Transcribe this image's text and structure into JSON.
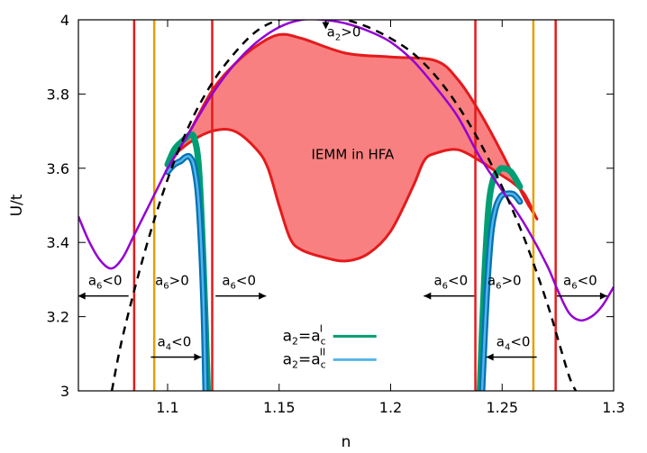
{
  "chart_data": {
    "type": "line",
    "xlabel": "n",
    "ylabel": "U/t",
    "xlim": [
      1.06,
      1.3
    ],
    "ylim": [
      3.0,
      4.0
    ],
    "xticks": [
      "1.1",
      "1.15",
      "1.2",
      "1.25",
      "1.3"
    ],
    "xtick_values": [
      1.1,
      1.15,
      1.2,
      1.25,
      1.3
    ],
    "yticks": [
      "3",
      "3.2",
      "3.4",
      "3.6",
      "3.8",
      "4"
    ],
    "ytick_values": [
      3.0,
      3.2,
      3.4,
      3.6,
      3.8,
      4.0
    ],
    "grid": false,
    "legend_position": "bottom-center",
    "region_label": "IEMM in HFA",
    "colors": {
      "red": "#e41a1c",
      "region_fill": "#f88080",
      "purple": "#9400d3",
      "orange": "#e69f00",
      "green": "#009e73",
      "light_blue": "#56b4e9",
      "dark_blue": "#0072b2",
      "black": "#000000"
    },
    "vertical_lines": [
      {
        "x": 1.085,
        "color": "red"
      },
      {
        "x": 1.094,
        "color": "orange"
      },
      {
        "x": 1.12,
        "color": "red"
      },
      {
        "x": 1.238,
        "color": "red"
      },
      {
        "x": 1.264,
        "color": "orange"
      },
      {
        "x": 1.274,
        "color": "red"
      }
    ],
    "legend": [
      {
        "lhs": "a",
        "lhs_sub": "2",
        "rhs": "a",
        "rhs_sub": "c",
        "rhs_sup": "I",
        "color": "green"
      },
      {
        "lhs": "a",
        "lhs_sub": "2",
        "rhs": "a",
        "rhs_sub": "c",
        "rhs_sup": "II",
        "color": "light_blue"
      }
    ],
    "annotations": [
      {
        "base": "a",
        "sub": "2",
        "rel": ">0",
        "x": 1.179,
        "y": 3.955,
        "arrow": "down"
      },
      {
        "base": "a",
        "sub": "6",
        "rel": "<0",
        "x": 1.072,
        "y": 3.285,
        "arrow": "left"
      },
      {
        "base": "a",
        "sub": "6",
        "rel": ">0",
        "x": 1.102,
        "y": 3.285,
        "arrow": "none"
      },
      {
        "base": "a",
        "sub": "6",
        "rel": "<0",
        "x": 1.132,
        "y": 3.285,
        "arrow": "right"
      },
      {
        "base": "a",
        "sub": "4",
        "rel": "<0",
        "x": 1.103,
        "y": 3.12,
        "arrow": "right"
      },
      {
        "base": "a",
        "sub": "6",
        "rel": "<0",
        "x": 1.227,
        "y": 3.285,
        "arrow": "left"
      },
      {
        "base": "a",
        "sub": "6",
        "rel": ">0",
        "x": 1.251,
        "y": 3.285,
        "arrow": "none"
      },
      {
        "base": "a",
        "sub": "6",
        "rel": "<0",
        "x": 1.285,
        "y": 3.285,
        "arrow": "right"
      },
      {
        "base": "a",
        "sub": "4",
        "rel": "<0",
        "x": 1.255,
        "y": 3.12,
        "arrow": "left"
      }
    ],
    "series": [
      {
        "style": "purple-solid",
        "x": [
          1.06,
          1.065,
          1.07,
          1.075,
          1.08,
          1.085,
          1.09,
          1.095,
          1.1,
          1.105,
          1.11,
          1.12,
          1.13,
          1.14,
          1.15,
          1.16,
          1.17,
          1.18,
          1.19,
          1.2,
          1.21,
          1.22,
          1.23,
          1.24,
          1.25,
          1.26,
          1.27,
          1.275,
          1.28,
          1.285,
          1.29,
          1.295,
          1.3
        ],
        "y": [
          3.47,
          3.4,
          3.35,
          3.33,
          3.36,
          3.42,
          3.48,
          3.54,
          3.6,
          3.65,
          3.7,
          3.8,
          3.88,
          3.94,
          3.98,
          4.0,
          4.0,
          3.99,
          3.97,
          3.94,
          3.89,
          3.82,
          3.74,
          3.63,
          3.54,
          3.45,
          3.34,
          3.27,
          3.21,
          3.19,
          3.2,
          3.23,
          3.28
        ]
      },
      {
        "style": "black-dashed",
        "x": [
          1.075,
          1.08,
          1.09,
          1.1,
          1.11,
          1.12,
          1.13,
          1.14,
          1.15,
          1.16,
          1.17,
          1.18,
          1.19,
          1.2,
          1.21,
          1.22,
          1.23,
          1.24,
          1.25,
          1.26,
          1.27,
          1.275,
          1.28,
          1.283
        ],
        "y": [
          3.0,
          3.15,
          3.38,
          3.57,
          3.72,
          3.83,
          3.91,
          3.97,
          4.0,
          4.01,
          4.01,
          4.0,
          3.98,
          3.95,
          3.91,
          3.85,
          3.77,
          3.67,
          3.55,
          3.41,
          3.24,
          3.14,
          3.04,
          3.0
        ]
      },
      {
        "style": "green-fan-left",
        "x": [
          1.1,
          1.103,
          1.106,
          1.108,
          1.11,
          1.112,
          1.114,
          1.116,
          1.118
        ],
        "y": [
          3.61,
          3.65,
          3.67,
          3.68,
          3.69,
          3.68,
          3.6,
          3.35,
          3.0
        ]
      },
      {
        "style": "blue-fan-left",
        "x": [
          1.1,
          1.103,
          1.106,
          1.108,
          1.11,
          1.112,
          1.114,
          1.116,
          1.117
        ],
        "y": [
          3.59,
          3.61,
          3.62,
          3.63,
          3.63,
          3.6,
          3.5,
          3.25,
          3.0
        ]
      },
      {
        "style": "green-fan-right",
        "x": [
          1.24,
          1.242,
          1.244,
          1.246,
          1.248,
          1.25,
          1.254,
          1.258
        ],
        "y": [
          3.0,
          3.3,
          3.5,
          3.57,
          3.59,
          3.6,
          3.59,
          3.55
        ]
      },
      {
        "style": "blue-fan-right",
        "x": [
          1.241,
          1.243,
          1.245,
          1.247,
          1.249,
          1.251,
          1.255,
          1.258
        ],
        "y": [
          3.0,
          3.25,
          3.42,
          3.49,
          3.52,
          3.53,
          3.53,
          3.51
        ]
      }
    ],
    "region_upper": {
      "x": [
        1.1,
        1.11,
        1.12,
        1.13,
        1.14,
        1.15,
        1.16,
        1.18,
        1.2,
        1.22,
        1.23,
        1.24,
        1.25,
        1.26,
        1.265
      ],
      "y": [
        3.6,
        3.7,
        3.81,
        3.88,
        3.93,
        3.96,
        3.95,
        3.91,
        3.9,
        3.89,
        3.84,
        3.75,
        3.64,
        3.52,
        3.47
      ]
    },
    "region_lower": {
      "x": [
        1.265,
        1.26,
        1.255,
        1.25,
        1.245,
        1.24,
        1.23,
        1.22,
        1.215,
        1.21,
        1.2,
        1.19,
        1.18,
        1.17,
        1.16,
        1.155,
        1.15,
        1.145,
        1.14,
        1.13,
        1.12,
        1.11,
        1.1
      ],
      "y": [
        3.47,
        3.53,
        3.56,
        3.58,
        3.6,
        3.62,
        3.65,
        3.64,
        3.62,
        3.55,
        3.43,
        3.37,
        3.35,
        3.36,
        3.38,
        3.41,
        3.5,
        3.6,
        3.65,
        3.7,
        3.7,
        3.67,
        3.62
      ]
    }
  }
}
